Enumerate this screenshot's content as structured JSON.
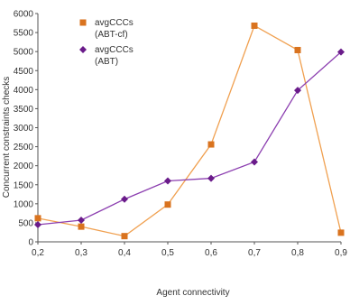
{
  "chart_data": {
    "type": "line",
    "title": "",
    "xlabel": "Agent connectivity",
    "ylabel": "Concurrent constraints checks",
    "x": [
      "0,2",
      "0,3",
      "0,4",
      "0,5",
      "0,6",
      "0,7",
      "0,8",
      "0,9"
    ],
    "y_ticks": [
      "0",
      "500",
      "1000",
      "1500",
      "2000",
      "2500",
      "3000",
      "3500",
      "4000",
      "4500",
      "5000",
      "5500",
      "6000"
    ],
    "ylim": [
      0,
      6000
    ],
    "grid": false,
    "legend_position": "top-left",
    "series": [
      {
        "name_line1": "avgCCCs",
        "name_line2": "(ABT-cf)",
        "color": "#f0a050",
        "marker_color": "#d9731f",
        "marker": "square",
        "values": [
          620,
          400,
          150,
          980,
          2560,
          5680,
          5040,
          240
        ]
      },
      {
        "name_line1": "avgCCCs",
        "name_line2": "(ABT)",
        "color": "#8c3fb0",
        "marker_color": "#6a1b8a",
        "marker": "diamond",
        "values": [
          450,
          570,
          1120,
          1600,
          1670,
          2100,
          3980,
          4990
        ]
      }
    ]
  }
}
